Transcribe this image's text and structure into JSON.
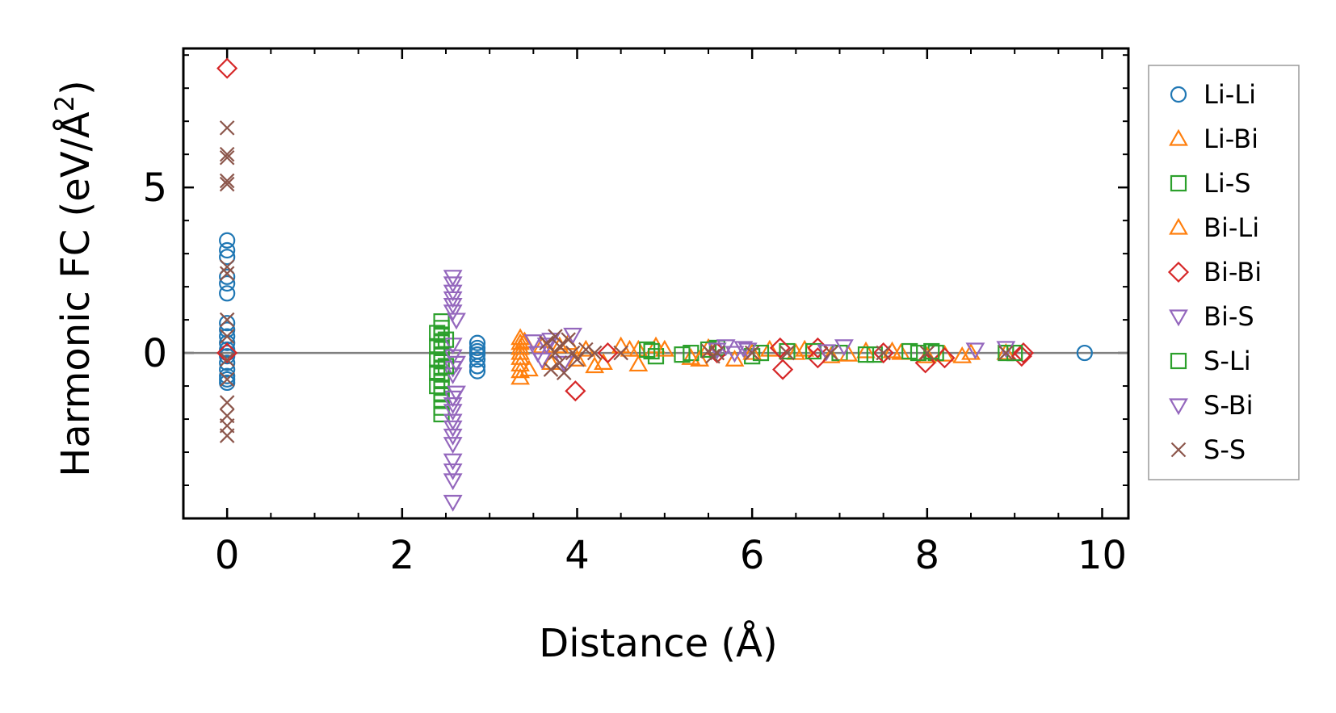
{
  "chart_data": {
    "type": "scatter",
    "title": "",
    "xlabel": "Distance (Å)",
    "ylabel_main": "Harmonic FC (eV/Å",
    "ylabel_sup": "2",
    "ylabel_end": ")",
    "xlim": [
      -0.5,
      10.3
    ],
    "ylim": [
      -5.0,
      9.2
    ],
    "xticks": [
      0,
      2,
      4,
      6,
      8,
      10
    ],
    "xtick_labels": [
      "0",
      "2",
      "4",
      "6",
      "8",
      "10"
    ],
    "yticks": [
      0,
      5
    ],
    "ytick_labels": [
      "0",
      "5"
    ],
    "x_minor_step": 0.5,
    "y_minor_step": 1,
    "zero_line": true,
    "grid": false,
    "legend_position": "outside-right",
    "series": [
      {
        "name": "Li-Li",
        "marker": "circle",
        "color": "#1f77b4",
        "x": [
          0,
          0,
          0,
          0,
          0,
          0,
          0,
          0,
          0,
          0,
          0,
          0,
          0,
          0,
          0,
          0,
          0,
          0,
          2.86,
          2.86,
          2.86,
          2.86,
          2.86,
          2.86,
          2.86,
          9.8
        ],
        "y": [
          3.4,
          3.1,
          2.9,
          2.3,
          2.1,
          1.8,
          0.9,
          0.7,
          0.5,
          0.3,
          0.1,
          -0.1,
          -0.3,
          -0.5,
          -0.7,
          -0.8,
          -0.9,
          0.0,
          0.3,
          0.15,
          0.05,
          -0.05,
          -0.2,
          -0.4,
          -0.55,
          0.0
        ]
      },
      {
        "name": "Li-Bi",
        "marker": "triangle-up",
        "color": "#ff7f0e",
        "x": [
          3.35,
          3.35,
          3.35,
          3.35,
          3.35,
          3.35,
          3.35,
          3.35,
          3.6,
          3.7,
          3.9,
          4.0,
          4.1,
          4.2,
          4.5,
          4.7,
          4.7,
          4.9,
          5.3,
          5.5,
          5.8,
          6.2,
          6.5,
          6.9,
          7.3,
          7.7,
          8.2,
          8.4,
          8.9
        ],
        "y": [
          0.45,
          0.3,
          0.15,
          0.0,
          -0.15,
          -0.35,
          -0.55,
          -0.75,
          0.2,
          -0.3,
          0.3,
          -0.2,
          0.1,
          -0.4,
          0.2,
          -0.35,
          0.1,
          0.2,
          -0.15,
          0.15,
          -0.2,
          0.1,
          0.0,
          -0.1,
          0.05,
          0.0,
          -0.05,
          -0.1,
          0.0
        ]
      },
      {
        "name": "Li-S",
        "marker": "square",
        "color": "#2ca02c",
        "x": [
          2.45,
          2.45,
          2.45,
          2.45,
          2.45,
          2.45,
          2.45,
          2.45,
          2.45,
          2.45,
          2.45,
          2.45,
          2.45,
          2.45,
          2.45,
          4.8,
          4.9,
          5.3,
          5.6,
          6.0,
          6.4,
          7.0,
          7.4,
          7.8,
          8.1,
          8.9
        ],
        "y": [
          0.95,
          0.75,
          0.55,
          0.35,
          0.15,
          -0.05,
          -0.25,
          -0.45,
          -0.65,
          -0.85,
          -1.05,
          -1.25,
          -1.45,
          -1.65,
          -1.85,
          0.1,
          -0.1,
          0.0,
          0.15,
          -0.1,
          0.05,
          0.0,
          -0.05,
          0.05,
          0.0,
          0.0
        ]
      },
      {
        "name": "Bi-Li",
        "marker": "triangle-up",
        "color": "#ff7f0e",
        "x": [
          3.4,
          3.45,
          3.8,
          4.3,
          4.6,
          5.0,
          5.4,
          6.0,
          6.6,
          7.1,
          7.6,
          8.0,
          8.5
        ],
        "y": [
          0.35,
          -0.5,
          0.2,
          -0.3,
          0.1,
          0.1,
          -0.2,
          0.0,
          0.1,
          -0.05,
          0.05,
          -0.1,
          0.0
        ]
      },
      {
        "name": "Bi-Bi",
        "marker": "diamond",
        "color": "#d62728",
        "x": [
          0,
          0,
          3.98,
          4.35,
          5.6,
          6.32,
          6.35,
          6.75,
          6.75,
          7.5,
          7.98,
          8.2,
          9.08,
          9.1
        ],
        "y": [
          8.6,
          0.0,
          -1.15,
          0.0,
          0.0,
          0.15,
          -0.5,
          0.15,
          -0.15,
          0.0,
          -0.3,
          -0.15,
          -0.1,
          0.0
        ]
      },
      {
        "name": "Bi-S",
        "marker": "triangle-down",
        "color": "#9467bd",
        "x": [
          2.58,
          2.58,
          2.58,
          2.58,
          2.58,
          2.58,
          2.58,
          2.58,
          2.58,
          2.58,
          2.58,
          2.58,
          2.58,
          2.58,
          2.58,
          2.58,
          2.58,
          2.58,
          2.58,
          2.58,
          2.58,
          3.5,
          3.55,
          3.6,
          3.65,
          3.95,
          5.7,
          5.8,
          5.9,
          7.05,
          8.55
        ],
        "y": [
          2.3,
          2.1,
          1.85,
          1.65,
          1.45,
          1.25,
          0.25,
          -0.1,
          -0.45,
          -0.65,
          -1.35,
          -1.55,
          -1.75,
          -2.05,
          -2.25,
          -2.5,
          -2.75,
          -3.25,
          -3.55,
          -3.85,
          -4.5,
          0.35,
          0.0,
          -0.2,
          0.25,
          0.55,
          0.2,
          0.0,
          0.15,
          0.2,
          0.1
        ]
      },
      {
        "name": "S-Li",
        "marker": "square",
        "color": "#2ca02c",
        "x": [
          2.4,
          2.4,
          2.4,
          2.4,
          2.4,
          2.5,
          2.5,
          4.85,
          5.2,
          5.5,
          6.1,
          6.7,
          7.3,
          7.9,
          8.05,
          9.0
        ],
        "y": [
          0.6,
          0.2,
          -0.2,
          -0.6,
          -1.0,
          0.4,
          -0.4,
          0.05,
          -0.05,
          0.1,
          0.0,
          0.05,
          -0.05,
          0.0,
          0.05,
          0.0
        ]
      },
      {
        "name": "S-Bi",
        "marker": "triangle-down",
        "color": "#9467bd",
        "x": [
          2.62,
          2.62,
          2.62,
          3.7,
          3.85,
          5.6,
          5.95,
          6.85,
          8.9
        ],
        "y": [
          1.0,
          -0.3,
          -1.2,
          0.4,
          -0.3,
          0.1,
          0.1,
          0.05,
          0.15
        ]
      },
      {
        "name": "S-S",
        "marker": "x",
        "color": "#8c564b",
        "x": [
          0,
          0,
          0,
          0,
          0,
          0,
          0,
          0,
          0,
          0,
          0,
          0,
          0,
          0,
          0,
          3.65,
          3.7,
          3.75,
          3.75,
          3.8,
          3.8,
          3.85,
          3.9,
          3.95,
          4.0,
          4.1,
          4.2,
          4.5,
          5.5,
          5.55,
          5.6,
          6.0,
          6.4,
          6.9,
          7.5,
          8.0,
          8.9
        ],
        "y": [
          6.8,
          6.0,
          5.9,
          5.2,
          5.1,
          2.6,
          2.4,
          1.0,
          0.5,
          -0.2,
          -0.8,
          -1.5,
          -1.9,
          -2.2,
          -2.5,
          0.3,
          -0.5,
          0.5,
          0.0,
          -0.3,
          0.2,
          -0.6,
          0.4,
          0.0,
          -0.2,
          0.1,
          0.0,
          0.0,
          0.05,
          -0.1,
          0.0,
          0.0,
          0.0,
          0.0,
          0.0,
          0.0,
          0.0
        ]
      }
    ]
  }
}
